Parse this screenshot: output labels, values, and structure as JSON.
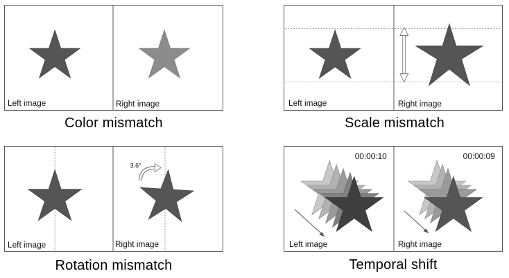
{
  "panels": [
    {
      "caption": "Color mismatch",
      "left_label": "Left image",
      "right_label": "Right image"
    },
    {
      "caption": "Scale mismatch",
      "left_label": "Left image",
      "right_label": "Right image"
    },
    {
      "caption": "Rotation mismatch",
      "left_label": "Left image",
      "right_label": "Right image",
      "angle_label": "3.6°"
    },
    {
      "caption": "Temporal shift",
      "left_label": "Left image",
      "right_label": "Right image",
      "left_time": "00:00:10",
      "right_time": "00:00:09"
    }
  ],
  "colors": {
    "star_dark": "#555555",
    "star_light": "#8c8c8c",
    "frame": "#555555"
  }
}
